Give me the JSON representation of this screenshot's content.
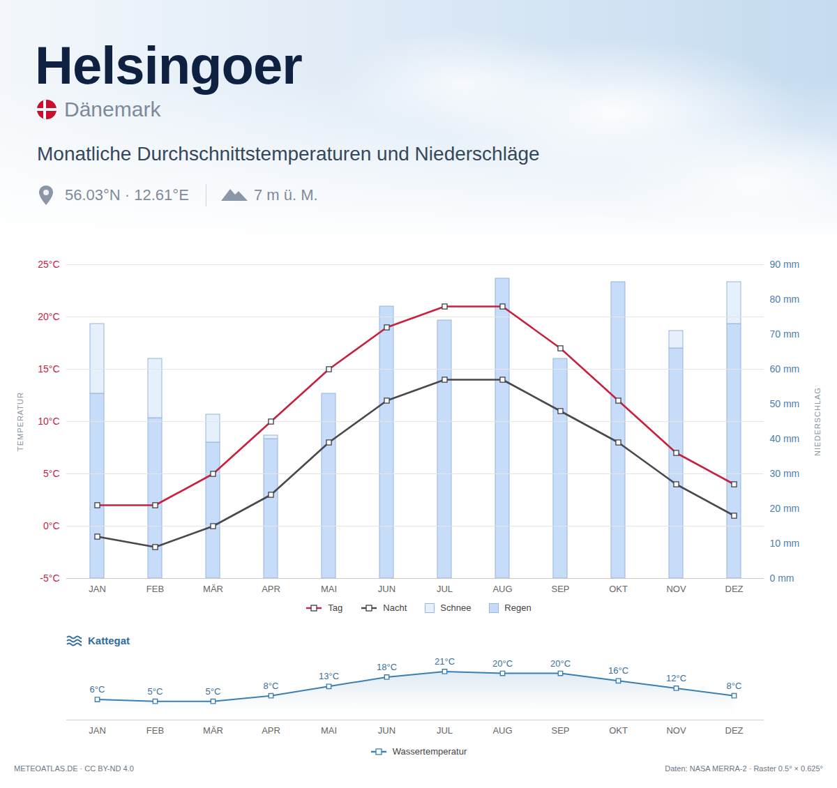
{
  "header": {
    "title": "Helsingoer",
    "country": "Dänemark",
    "subtitle": "Monatliche Durchschnittstemperaturen und Niederschläge",
    "coordinates": "56.03°N · 12.61°E",
    "elevation": "7 m ü. M."
  },
  "chart_data": [
    {
      "type": "combo",
      "categories": [
        "JAN",
        "FEB",
        "MÄR",
        "APR",
        "MAI",
        "JUN",
        "JUL",
        "AUG",
        "SEP",
        "OKT",
        "NOV",
        "DEZ"
      ],
      "y_label": "TEMPERATUR",
      "y2_label": "NIEDERSCHLAG",
      "ylim": [
        -5,
        25
      ],
      "yticks": [
        {
          "value": -5,
          "label": "-5°C"
        },
        {
          "value": 0,
          "label": "0°C"
        },
        {
          "value": 5,
          "label": "5°C"
        },
        {
          "value": 10,
          "label": "10°C"
        },
        {
          "value": 15,
          "label": "15°C"
        },
        {
          "value": 20,
          "label": "20°C"
        },
        {
          "value": 25,
          "label": "25°C"
        }
      ],
      "y2lim": [
        0,
        90
      ],
      "y2ticks": [
        {
          "value": 0,
          "label": "0 mm"
        },
        {
          "value": 10,
          "label": "10 mm"
        },
        {
          "value": 20,
          "label": "20 mm"
        },
        {
          "value": 30,
          "label": "30 mm"
        },
        {
          "value": 40,
          "label": "40 mm"
        },
        {
          "value": 50,
          "label": "50 mm"
        },
        {
          "value": 60,
          "label": "60 mm"
        },
        {
          "value": 70,
          "label": "70 mm"
        },
        {
          "value": 80,
          "label": "80 mm"
        },
        {
          "value": 90,
          "label": "90 mm"
        }
      ],
      "grid": true,
      "stacked": true,
      "legend": "bottom",
      "series": [
        {
          "name": "Tag",
          "type": "line",
          "color": "#c8203f",
          "marker": "square",
          "values": [
            2,
            2,
            5,
            10,
            15,
            19,
            21,
            21,
            17,
            12,
            7,
            4
          ]
        },
        {
          "name": "Nacht",
          "type": "line",
          "color": "#48484e",
          "marker": "square",
          "values": [
            -1,
            -2,
            0,
            3,
            8,
            12,
            14,
            14,
            11,
            8,
            4,
            1
          ]
        },
        {
          "name": "Schnee",
          "type": "bar",
          "axis": "y2",
          "color": "#e6f0fc",
          "values": [
            20,
            17,
            8,
            1,
            0,
            0,
            0,
            0,
            0,
            0,
            5,
            12
          ]
        },
        {
          "name": "Regen",
          "type": "bar",
          "axis": "y2",
          "color": "#c7dcf8",
          "values": [
            53,
            46,
            39,
            40,
            53,
            78,
            74,
            86,
            63,
            85,
            66,
            73
          ]
        }
      ]
    },
    {
      "type": "line",
      "title": "Kattegat",
      "categories": [
        "JAN",
        "FEB",
        "MÄR",
        "APR",
        "MAI",
        "JUN",
        "JUL",
        "AUG",
        "SEP",
        "OKT",
        "NOV",
        "DEZ"
      ],
      "ylim": [
        -5,
        26
      ],
      "tick_labels": "x",
      "data_labels": true,
      "legend": "bottom",
      "series": [
        {
          "name": "Wassertemperatur",
          "color": "#3b7fb3",
          "marker": "square",
          "values": [
            6,
            5,
            5,
            8,
            13,
            18,
            21,
            20,
            20,
            16,
            12,
            8
          ],
          "value_labels": [
            "6°C",
            "5°C",
            "5°C",
            "8°C",
            "13°C",
            "18°C",
            "21°C",
            "20°C",
            "20°C",
            "16°C",
            "12°C",
            "8°C"
          ]
        }
      ]
    }
  ],
  "footer": {
    "left": "METEOATLAS.DE · CC BY-ND 4.0",
    "right": "Daten: NASA MERRA-2 · Raster 0.5° × 0.625°"
  }
}
